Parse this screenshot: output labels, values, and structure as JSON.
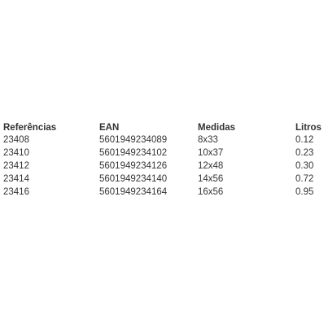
{
  "table": {
    "headers": [
      "Referências",
      "EAN",
      "Medidas",
      "Litros"
    ],
    "rows": [
      [
        "23408",
        "5601949234089",
        "8x33",
        "0.12"
      ],
      [
        "23410",
        "5601949234102",
        "10x37",
        "0.23"
      ],
      [
        "23412",
        "5601949234126",
        "12x48",
        "0.30"
      ],
      [
        "23414",
        "5601949234140",
        "14x56",
        "0.72"
      ],
      [
        "23416",
        "5601949234164",
        "16x56",
        "0.95"
      ]
    ]
  }
}
